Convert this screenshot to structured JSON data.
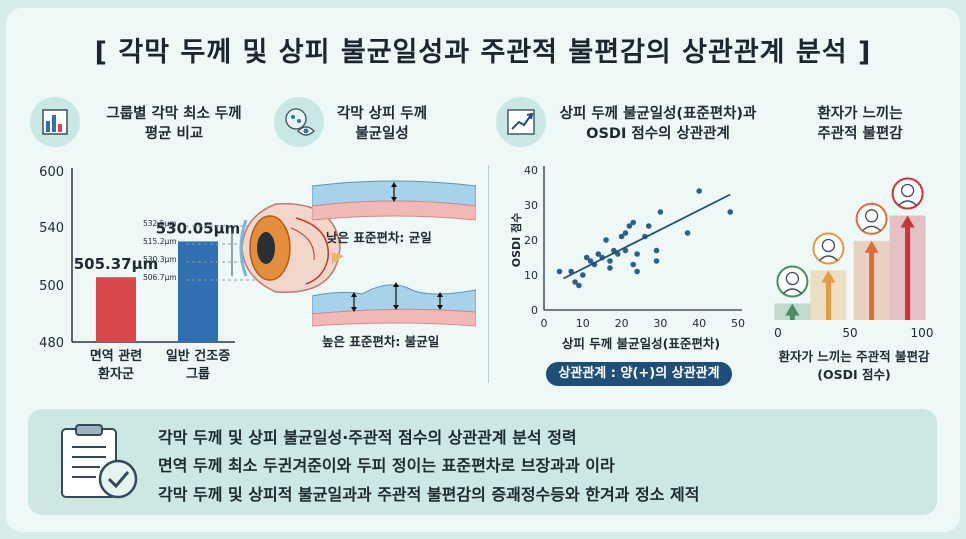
{
  "title": "[ 각막 두께 및 상피 불균일성과 주관적 불편감의 상관관계 분석 ]",
  "sections": {
    "group_compare": {
      "title_line1": "그룹별 각막 최소 두께",
      "title_line2": "평균 비교",
      "icon": "bar-chart-icon"
    },
    "epithelium": {
      "title_line1": "각막 상피 두께",
      "title_line2": "불균일성",
      "icon": "eye-cell-icon"
    },
    "correlation": {
      "title_line1": "상피 두께 불균일성(표준편차)과",
      "title_line2": "OSDI 점수의 상관관계",
      "icon": "trend-chart-icon"
    },
    "discomfort": {
      "title_line1": "환자가 느끼는",
      "title_line2": "주관적 불편감"
    }
  },
  "labels": {
    "low_sd": "낮은 표준편차: 균일",
    "high_sd": "높은 표준편차: 불균일",
    "thickness_marks": [
      "532.5μm",
      "515.2μm",
      "530.3μm",
      "506.7μm"
    ],
    "correlation_pill": "상관관계 : 양(+)의 상관관계"
  },
  "colors": {
    "immune": "#d9474a",
    "dry_eye": "#2f6fb2",
    "trend": "#1f4f79",
    "point": "#2e5f88"
  },
  "chart_data": [
    {
      "type": "bar",
      "categories": [
        "면역 관련\n환자군",
        "일반 건조증\n그룹"
      ],
      "category_lines": [
        [
          "면역 관련",
          "환자군"
        ],
        [
          "일반 건조증",
          "그룹"
        ]
      ],
      "values": [
        505.37,
        530.05
      ],
      "data_labels": [
        "505.37μm",
        "530.05μm"
      ],
      "yticks": [
        480,
        500,
        540,
        600
      ],
      "ylim": [
        480,
        600
      ]
    },
    {
      "type": "scatter",
      "xlabel": "상피 두께 불균일성(표준편차)",
      "ylabel": "OSDI 점수",
      "xlim": [
        0,
        50
      ],
      "ylim": [
        0,
        40
      ],
      "xticks": [
        0,
        10,
        20,
        30,
        40,
        50
      ],
      "yticks": [
        0,
        10,
        20,
        30,
        40
      ],
      "points": [
        [
          4,
          11
        ],
        [
          7,
          11
        ],
        [
          8,
          8
        ],
        [
          9,
          7
        ],
        [
          10,
          10
        ],
        [
          11,
          15
        ],
        [
          12,
          14
        ],
        [
          13,
          13
        ],
        [
          14,
          16
        ],
        [
          15,
          15
        ],
        [
          16,
          20
        ],
        [
          17,
          12
        ],
        [
          17,
          14
        ],
        [
          18,
          17
        ],
        [
          19,
          16
        ],
        [
          20,
          21
        ],
        [
          21,
          22
        ],
        [
          21,
          17
        ],
        [
          22,
          24
        ],
        [
          23,
          25
        ],
        [
          23,
          13
        ],
        [
          24,
          16
        ],
        [
          24,
          11
        ],
        [
          26,
          21
        ],
        [
          27,
          24
        ],
        [
          29,
          17
        ],
        [
          29,
          14
        ],
        [
          30,
          28
        ],
        [
          37,
          22
        ],
        [
          40,
          34
        ],
        [
          48,
          28
        ]
      ],
      "trend": [
        [
          5,
          9
        ],
        [
          48,
          33
        ]
      ]
    },
    {
      "type": "bar",
      "xlabel": "환자가 느끼는 주관적 불편감\n(OSDI 점수)",
      "xlabel_lines": [
        "환자가 느끼는 주관적 불편감",
        "(OSDI 점수)"
      ],
      "xticks": [
        0,
        50,
        100
      ],
      "xlim": [
        0,
        100
      ],
      "levels": [
        {
          "x": 10,
          "value": 15,
          "color": "#4c8c5e",
          "icon": "neutral-face-icon"
        },
        {
          "x": 35,
          "value": 45,
          "color": "#e59a3e",
          "icon": "mild-discomfort-face-icon"
        },
        {
          "x": 65,
          "value": 72,
          "color": "#e06b3a",
          "icon": "uncomfortable-face-icon"
        },
        {
          "x": 90,
          "value": 95,
          "color": "#c9333a",
          "icon": "distressed-face-icon"
        }
      ]
    }
  ],
  "bottom": {
    "icon": "clipboard-check-icon",
    "lines": [
      "각막 두께 및 상피 불균일성·주관적 점수의 상관관계 분석 정력",
      "면역 두께 최소 두귄겨준이와 두피 정이는 표준편차로 브장과과 이라",
      "각막 두께 및 상피적 불균일과과 주관적 불편감의 증괘정수등와 한겨과 정소 제적"
    ]
  }
}
